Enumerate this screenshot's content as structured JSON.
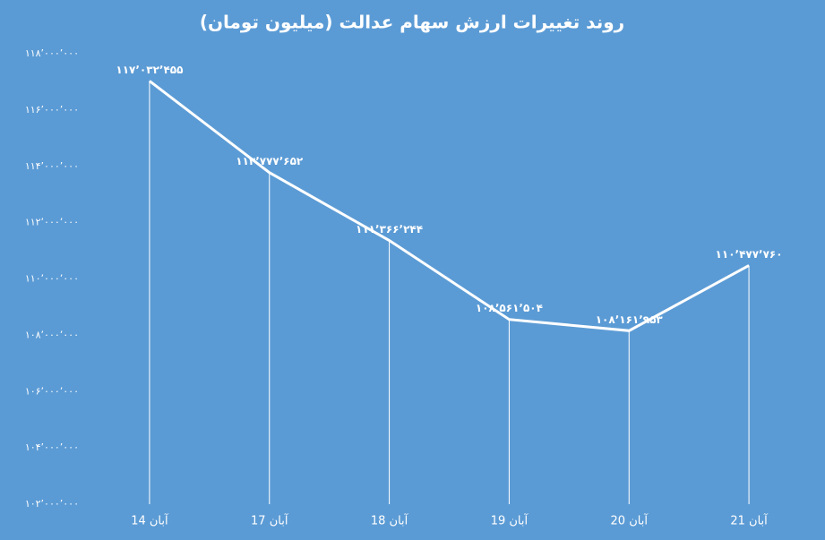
{
  "chart_data": {
    "type": "line",
    "title": "روند تغییرات ارزش سهام عدالت (میلیون تومان)",
    "categories": [
      "14 آبان",
      "17 آبان",
      "18 آبان",
      "19 آبان",
      "20 آبان",
      "21 آبان"
    ],
    "series": [
      {
        "color": "#ffffff",
        "values": [
          117032455,
          113777652,
          111366244,
          108561504,
          108161953,
          110477760
        ],
        "value_labels": [
          "۱۱۷٬۰۳۲٬۴۵۵",
          "۱۱۳٬۷۷۷٬۶۵۲",
          "۱۱۱٬۳۶۶٬۲۴۴",
          "۱۰۸٬۵۶۱٬۵۰۴",
          "۱۰۸٬۱۶۱٬۹۵۳",
          "۱۱۰٬۴۷۷٬۷۶۰"
        ]
      }
    ],
    "ylim": [
      102000000,
      118000000
    ],
    "yticks": [
      {
        "value": 102000000,
        "label": "۱۰۲٬۰۰۰٬۰۰۰"
      },
      {
        "value": 104000000,
        "label": "۱۰۴٬۰۰۰٬۰۰۰"
      },
      {
        "value": 106000000,
        "label": "۱۰۶٬۰۰۰٬۰۰۰"
      },
      {
        "value": 108000000,
        "label": "۱۰۸٬۰۰۰٬۰۰۰"
      },
      {
        "value": 110000000,
        "label": "۱۱۰٬۰۰۰٬۰۰۰"
      },
      {
        "value": 112000000,
        "label": "۱۱۲٬۰۰۰٬۰۰۰"
      },
      {
        "value": 114000000,
        "label": "۱۱۴٬۰۰۰٬۰۰۰"
      },
      {
        "value": 116000000,
        "label": "۱۱۶٬۰۰۰٬۰۰۰"
      },
      {
        "value": 118000000,
        "label": "۱۱۸٬۰۰۰٬۰۰۰"
      }
    ],
    "background": "#5b9bd5",
    "drop_lines": true
  }
}
